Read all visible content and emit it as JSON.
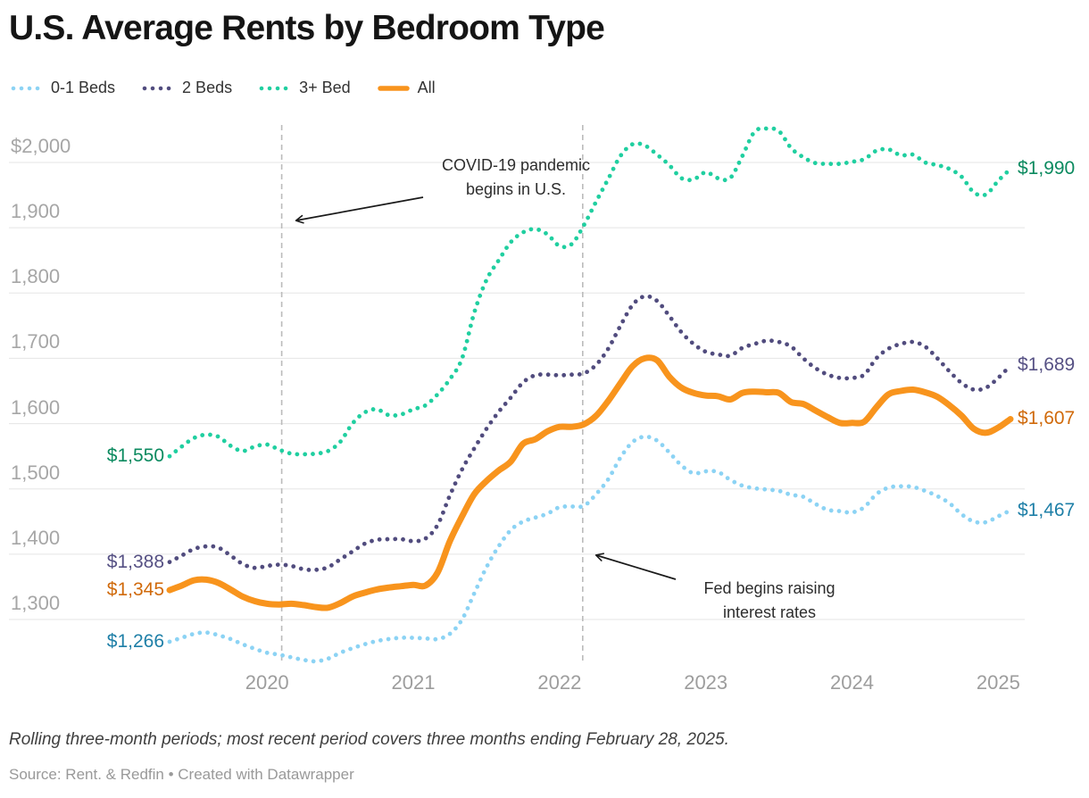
{
  "title": "U.S. Average Rents by Bedroom Type",
  "chart_data": {
    "type": "line",
    "x_unit": "month",
    "x_range": {
      "first_period": "2019-05",
      "last_period": "2025-02"
    },
    "grid": "horizontal",
    "legend_position": "top",
    "y_axis": {
      "min": 1300,
      "max": 2000,
      "ticks": [
        {
          "value": 2000,
          "label": "$2,000"
        },
        {
          "value": 1900,
          "label": "1,900"
        },
        {
          "value": 1800,
          "label": "1,800"
        },
        {
          "value": 1700,
          "label": "1,700"
        },
        {
          "value": 1600,
          "label": "1,600"
        },
        {
          "value": 1500,
          "label": "1,500"
        },
        {
          "value": 1400,
          "label": "1,400"
        },
        {
          "value": 1300,
          "label": "1,300"
        }
      ]
    },
    "x_axis": {
      "ticks": [
        {
          "label": "2020",
          "month_index": 8
        },
        {
          "label": "2021",
          "month_index": 20
        },
        {
          "label": "2022",
          "month_index": 32
        },
        {
          "label": "2023",
          "month_index": 44
        },
        {
          "label": "2024",
          "month_index": 56
        },
        {
          "label": "2025",
          "month_index": 68
        }
      ]
    },
    "series": [
      {
        "name": "0-1 Beds",
        "style": "dotted",
        "color": "#8CD3F4",
        "label_color": "#1E7FA7",
        "start_label": "$1,266",
        "end_label": "$1,467",
        "values": [
          1266,
          1272,
          1278,
          1280,
          1276,
          1270,
          1262,
          1255,
          1249,
          1246,
          1242,
          1238,
          1236,
          1240,
          1249,
          1256,
          1262,
          1267,
          1270,
          1272,
          1272,
          1271,
          1270,
          1278,
          1300,
          1340,
          1380,
          1412,
          1437,
          1450,
          1456,
          1462,
          1472,
          1473,
          1474,
          1492,
          1515,
          1548,
          1572,
          1580,
          1574,
          1556,
          1536,
          1524,
          1527,
          1526,
          1514,
          1505,
          1501,
          1499,
          1497,
          1491,
          1488,
          1477,
          1468,
          1466,
          1464,
          1472,
          1492,
          1502,
          1504,
          1503,
          1497,
          1489,
          1478,
          1461,
          1450,
          1449,
          1458,
          1467
        ]
      },
      {
        "name": "2 Beds",
        "style": "dotted",
        "color": "#514C7E",
        "label_color": "#565184",
        "start_label": "$1,388",
        "end_label": "$1,689",
        "values": [
          1388,
          1398,
          1408,
          1412,
          1410,
          1398,
          1385,
          1379,
          1382,
          1384,
          1382,
          1377,
          1376,
          1380,
          1392,
          1404,
          1416,
          1422,
          1423,
          1423,
          1420,
          1424,
          1445,
          1490,
          1530,
          1562,
          1592,
          1618,
          1640,
          1663,
          1674,
          1675,
          1674,
          1675,
          1677,
          1690,
          1715,
          1750,
          1782,
          1795,
          1788,
          1765,
          1740,
          1722,
          1710,
          1706,
          1704,
          1716,
          1722,
          1727,
          1725,
          1718,
          1700,
          1685,
          1675,
          1670,
          1670,
          1675,
          1700,
          1715,
          1722,
          1725,
          1718,
          1700,
          1680,
          1662,
          1652,
          1655,
          1670,
          1689
        ]
      },
      {
        "name": "3+ Bed",
        "style": "dotted",
        "color": "#20CFA0",
        "label_color": "#0B8A5F",
        "start_label": "$1,550",
        "end_label": "$1,990",
        "values": [
          1550,
          1565,
          1578,
          1583,
          1580,
          1566,
          1558,
          1565,
          1568,
          1560,
          1554,
          1553,
          1554,
          1558,
          1572,
          1600,
          1617,
          1622,
          1613,
          1614,
          1622,
          1628,
          1645,
          1668,
          1700,
          1770,
          1820,
          1850,
          1878,
          1893,
          1898,
          1890,
          1872,
          1875,
          1904,
          1940,
          1975,
          2010,
          2028,
          2026,
          2012,
          1996,
          1976,
          1974,
          1985,
          1976,
          1976,
          2010,
          2047,
          2052,
          2048,
          2022,
          2008,
          1999,
          1998,
          1998,
          2001,
          2005,
          2018,
          2020,
          2011,
          2012,
          2000,
          1996,
          1990,
          1978,
          1954,
          1951,
          1972,
          1990
        ]
      },
      {
        "name": "All",
        "style": "solid",
        "color": "#F8941D",
        "label_color": "#D06A0B",
        "start_label": "$1,345",
        "end_label": "$1,607",
        "values": [
          1345,
          1352,
          1360,
          1361,
          1356,
          1346,
          1335,
          1328,
          1324,
          1323,
          1324,
          1322,
          1319,
          1318,
          1325,
          1335,
          1341,
          1346,
          1349,
          1351,
          1353,
          1352,
          1372,
          1420,
          1458,
          1492,
          1512,
          1528,
          1542,
          1569,
          1576,
          1588,
          1595,
          1595,
          1599,
          1612,
          1635,
          1662,
          1688,
          1700,
          1697,
          1672,
          1655,
          1647,
          1643,
          1642,
          1637,
          1647,
          1649,
          1648,
          1647,
          1633,
          1630,
          1620,
          1610,
          1601,
          1601,
          1603,
          1625,
          1645,
          1650,
          1652,
          1648,
          1641,
          1628,
          1612,
          1592,
          1586,
          1594,
          1607
        ]
      }
    ],
    "annotations": [
      {
        "id": "covid",
        "line1": "COVID-19 pandemic",
        "line2": "begins in U.S.",
        "vline_month_index": 9.2
      },
      {
        "id": "fed",
        "line1": "Fed begins raising",
        "line2": "interest rates",
        "vline_month_index": 33.9
      }
    ]
  },
  "footer": {
    "note": "Rolling three-month periods; most recent period covers three months ending February 28, 2025.",
    "source": "Source: Rent. & Redfin • Created with Datawrapper"
  }
}
